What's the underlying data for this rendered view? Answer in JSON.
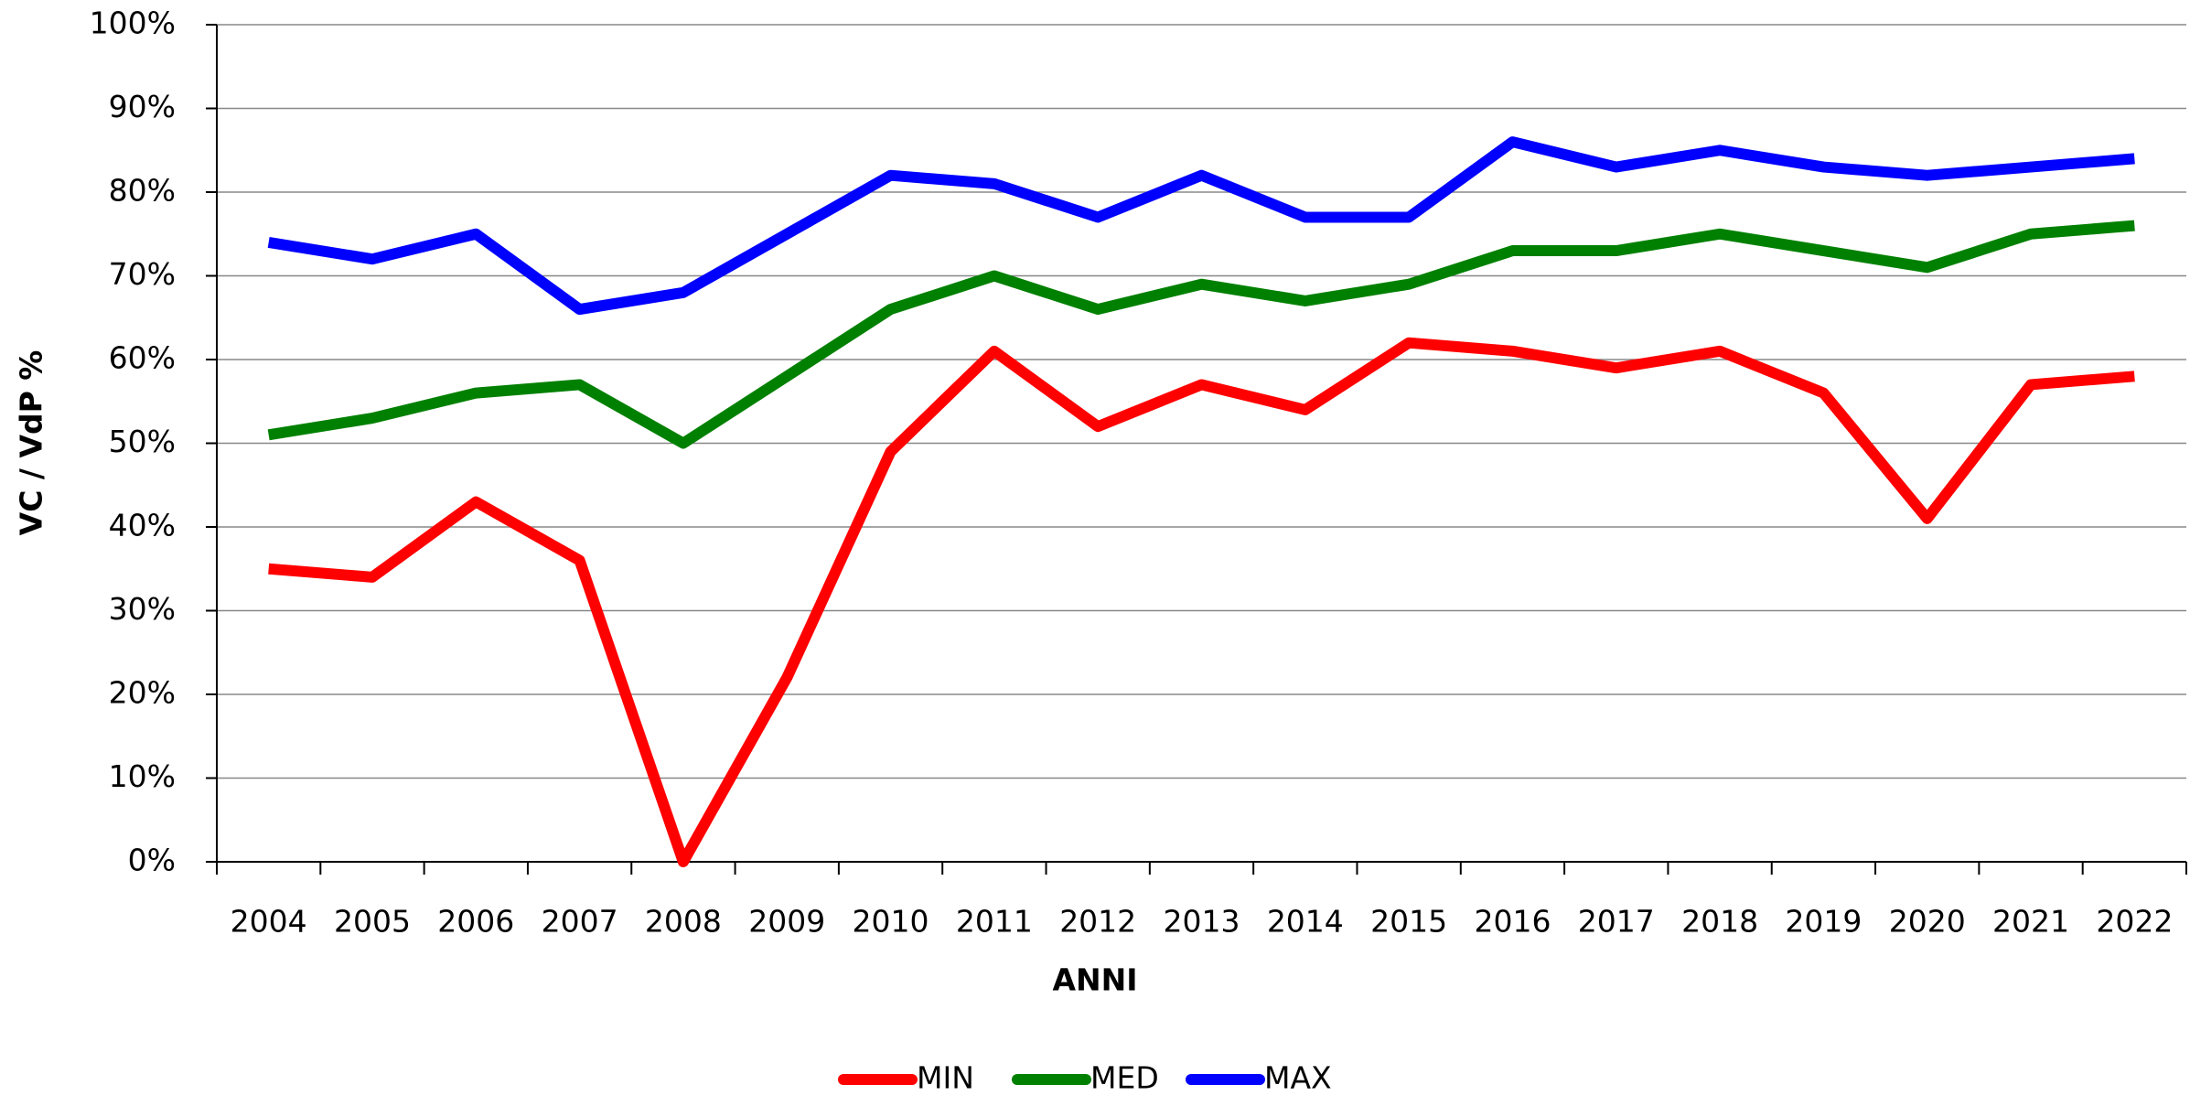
{
  "chart_data": {
    "type": "line",
    "x_label": "ANNI",
    "y_label": "VC / VdP %",
    "categories": [
      "2004",
      "2005",
      "2006",
      "2007",
      "2008",
      "2009",
      "2010",
      "2011",
      "2012",
      "2013",
      "2014",
      "2015",
      "2016",
      "2017",
      "2018",
      "2019",
      "2020",
      "2021",
      "2022"
    ],
    "series": [
      {
        "name": "MIN",
        "color": "#ff0000",
        "values": [
          35,
          34,
          43,
          36,
          0,
          22,
          49,
          61,
          52,
          57,
          54,
          62,
          61,
          59,
          61,
          56,
          41,
          57,
          58
        ]
      },
      {
        "name": "MED",
        "color": "#008000",
        "values": [
          51,
          53,
          56,
          57,
          50,
          58,
          66,
          70,
          66,
          69,
          67,
          69,
          73,
          73,
          75,
          73,
          71,
          75,
          76
        ]
      },
      {
        "name": "MAX",
        "color": "#0000ff",
        "values": [
          74,
          72,
          75,
          66,
          68,
          75,
          82,
          81,
          77,
          82,
          77,
          77,
          86,
          83,
          85,
          83,
          82,
          83,
          84
        ]
      }
    ],
    "ylim": [
      0,
      100
    ],
    "yticks": [
      {
        "value": 0,
        "label": "0%"
      },
      {
        "value": 10,
        "label": "10%"
      },
      {
        "value": 20,
        "label": "20%"
      },
      {
        "value": 30,
        "label": "30%"
      },
      {
        "value": 40,
        "label": "40%"
      },
      {
        "value": 50,
        "label": "50%"
      },
      {
        "value": 60,
        "label": "60%"
      },
      {
        "value": 70,
        "label": "70%"
      },
      {
        "value": 80,
        "label": "80%"
      },
      {
        "value": 90,
        "label": "90%"
      },
      {
        "value": 100,
        "label": "100%"
      }
    ],
    "grid": true,
    "legend": "bottom"
  }
}
